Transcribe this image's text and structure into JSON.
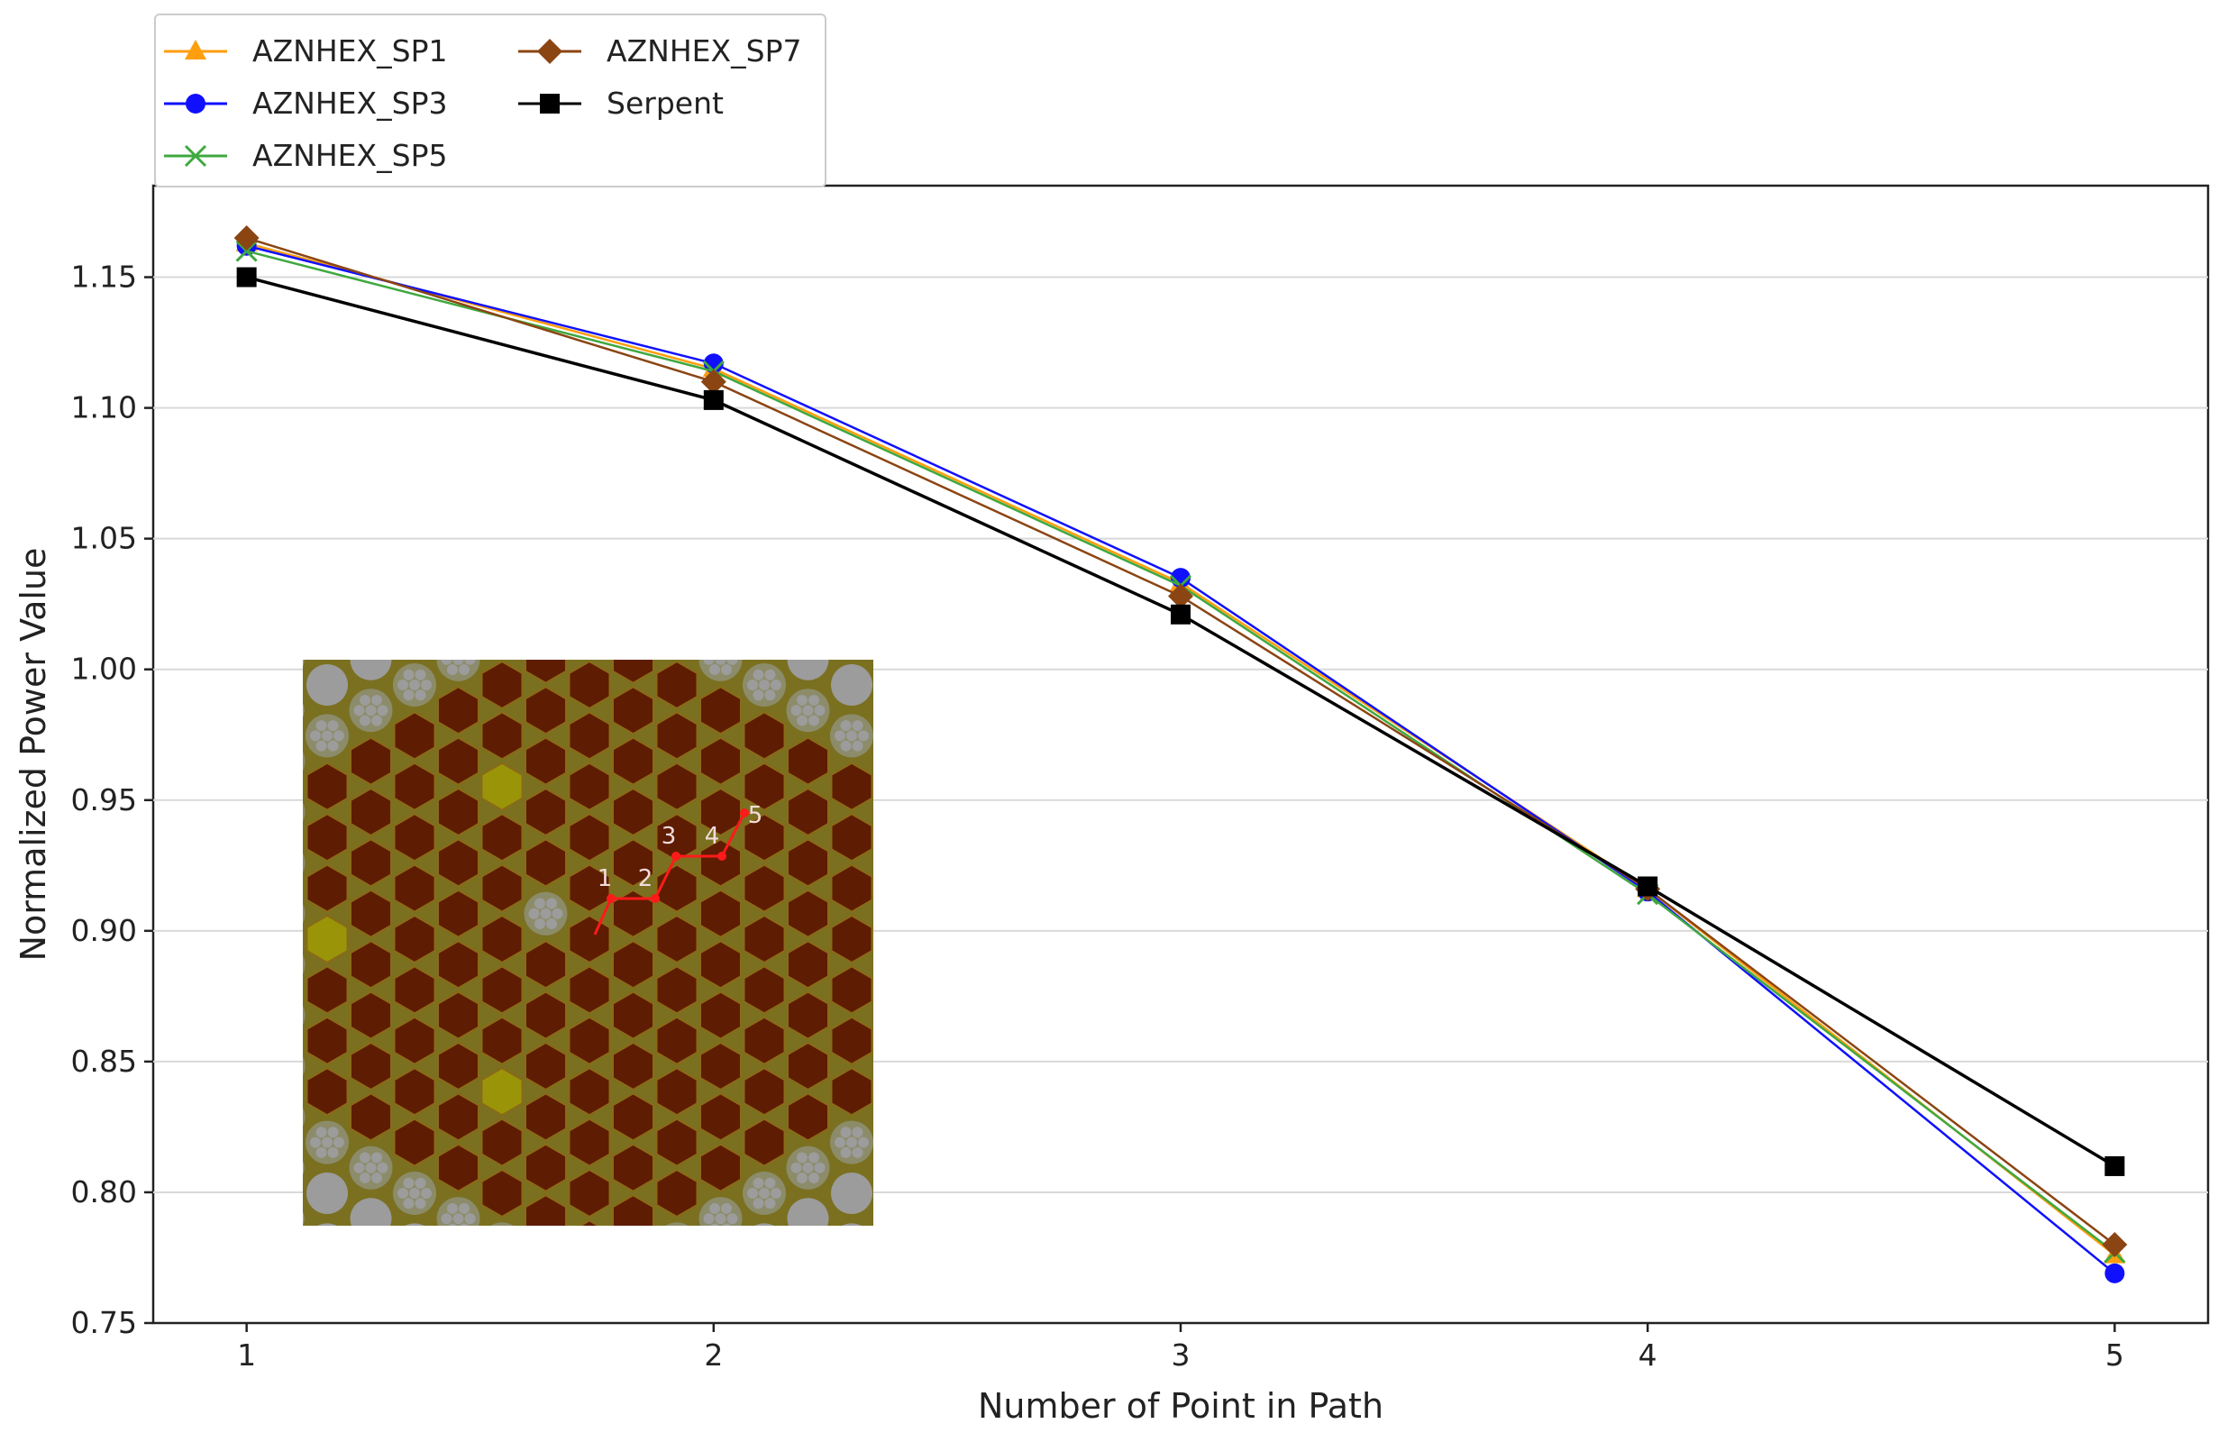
{
  "chart_data": {
    "type": "line",
    "title": "",
    "xlabel": "Number of Point in Path",
    "ylabel": "Normalized Power Value",
    "x": [
      1,
      2,
      3,
      4,
      5
    ],
    "xticks": [
      "1",
      "2",
      "3",
      "4",
      "5"
    ],
    "xlim": [
      0.8,
      5.2
    ],
    "ylim": [
      0.75,
      1.185
    ],
    "yticks": [
      "0.75",
      "0.80",
      "0.85",
      "0.90",
      "0.95",
      "1.00",
      "1.05",
      "1.10",
      "1.15"
    ],
    "grid": "horizontal",
    "legend_position": "top-left (outside plot)",
    "series": [
      {
        "name": "AZNHEX_SP1",
        "color": "#ff9e0f",
        "marker": "triangle",
        "values": [
          1.163,
          1.115,
          1.033,
          0.916,
          0.776
        ]
      },
      {
        "name": "AZNHEX_SP3",
        "color": "#1010ff",
        "marker": "circle",
        "values": [
          1.162,
          1.117,
          1.035,
          0.915,
          0.769
        ]
      },
      {
        "name": "AZNHEX_SP5",
        "color": "#3fa83f",
        "marker": "x",
        "values": [
          1.16,
          1.114,
          1.032,
          0.914,
          0.777
        ]
      },
      {
        "name": "AZNHEX_SP7",
        "color": "#8b4513",
        "marker": "diamond",
        "values": [
          1.165,
          1.11,
          1.028,
          0.916,
          0.78
        ]
      },
      {
        "name": "Serpent",
        "color": "#000000",
        "marker": "square",
        "values": [
          1.15,
          1.103,
          1.021,
          0.917,
          0.81
        ]
      }
    ],
    "inset": {
      "description_marker_labels": [
        "1",
        "2",
        "3",
        "4",
        "5"
      ],
      "colors": {
        "background": "#7a7020",
        "circle": "#9c9c9c",
        "fuel": "#5e1c02",
        "fuel_edge": "#8a6a18",
        "control": "#9a9508",
        "path": "#ff1a1a"
      }
    }
  }
}
